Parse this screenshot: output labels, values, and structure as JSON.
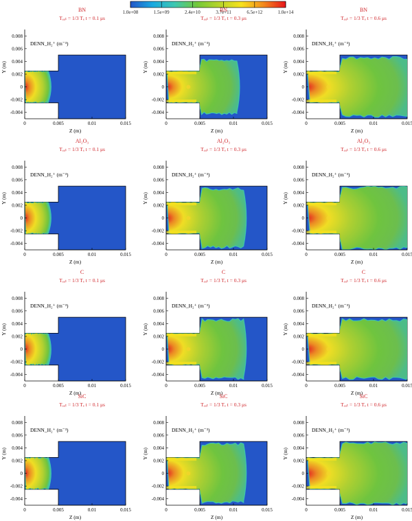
{
  "colorbar": {
    "tick_labels": [
      "1.0e+08",
      "1.5e+09",
      "2.4e+10",
      "3.7e+11",
      "6.5e+12",
      "1.0e+14"
    ],
    "colors": [
      "#2456c8",
      "#1aa9e0",
      "#3ec7b0",
      "#72c83a",
      "#b6d42c",
      "#f7e21e",
      "#f28a1e",
      "#e8141b"
    ]
  },
  "axis_labels": {
    "x": "Z (m)",
    "y": "Y (m)"
  },
  "variable_label": "DENN_H₂⁺ (m⁻³)",
  "chart_data": {
    "type": "heatmap",
    "quantity": "DENN_H₂⁺",
    "unit": "m⁻³",
    "color_scale": "log",
    "value_range": [
      100000000.0,
      100000000000000.0
    ],
    "xlim": [
      0,
      0.015
    ],
    "ylim": [
      -0.005,
      0.009
    ],
    "xticks": [
      "0",
      "0.005",
      "0.01",
      "0.015"
    ],
    "yticks": [
      "0.008",
      "0.006",
      "0.004",
      "0.002",
      "0",
      "-0.002",
      "-0.004"
    ],
    "panel_size_label": "1/3 T",
    "times_us": [
      0.1,
      0.3,
      0.6
    ],
    "materials": [
      {
        "name": "BN",
        "panels": [
          {
            "title": "BN",
            "params": "Tₐᵤₜ = 1/3 Tₑ   t = 0.1 μs",
            "time_us": 0.1,
            "plasma_front_z_m": 0.0035,
            "plasma_halfwidth_m": 0.0025
          },
          {
            "title": "BN",
            "params": "Tₐᵤₜ = 1/3 Tₑ   t = 0.3 μs",
            "time_us": 0.3,
            "plasma_front_z_m": 0.0105,
            "plasma_halfwidth_m": 0.0042
          },
          {
            "title": "BN",
            "params": "Tₐᵤₜ = 1/3 Tₑ   t = 0.6 μs",
            "time_us": 0.6,
            "plasma_front_z_m": 0.015,
            "plasma_halfwidth_m": 0.0046
          }
        ]
      },
      {
        "name": "Al2O3",
        "panels": [
          {
            "title": "Al₂O₃",
            "params": "Tₐᵤₜ = 1/3 Tₑ   t = 0.1 μs",
            "time_us": 0.1,
            "plasma_front_z_m": 0.0035,
            "plasma_halfwidth_m": 0.0025
          },
          {
            "title": "Al₂O₃",
            "params": "Tₐᵤₜ = 1/3 Tₑ   t = 0.3 μs",
            "time_us": 0.3,
            "plasma_front_z_m": 0.0115,
            "plasma_halfwidth_m": 0.0046
          },
          {
            "title": "Al₂O₃",
            "params": "Tₐᵤₜ = 1/3 Tₑ   t = 0.6 μs",
            "time_us": 0.6,
            "plasma_front_z_m": 0.015,
            "plasma_halfwidth_m": 0.0048
          }
        ]
      },
      {
        "name": "C",
        "panels": [
          {
            "title": "C",
            "params": "Tₐᵤₜ = 1/3 Tₑ   t = 0.1 μs",
            "time_us": 0.1,
            "plasma_front_z_m": 0.0035,
            "plasma_halfwidth_m": 0.0027
          },
          {
            "title": "C",
            "params": "Tₐᵤₜ = 1/3 Tₑ   t = 0.3 μs",
            "time_us": 0.3,
            "plasma_front_z_m": 0.0115,
            "plasma_halfwidth_m": 0.0046
          },
          {
            "title": "C",
            "params": "Tₐᵤₜ = 1/3 Tₑ   t = 0.6 μs",
            "time_us": 0.6,
            "plasma_front_z_m": 0.015,
            "plasma_halfwidth_m": 0.0046
          }
        ]
      },
      {
        "name": "SiC",
        "panels": [
          {
            "title": "SiC",
            "params": "Tₐᵤₜ = 1/3 Tₑ   t = 0.1 μs",
            "time_us": 0.1,
            "plasma_front_z_m": 0.0035,
            "plasma_halfwidth_m": 0.0027
          },
          {
            "title": "SiC",
            "params": "Tₐᵤₜ = 1/3 Tₑ   t = 0.3 μs",
            "time_us": 0.3,
            "plasma_front_z_m": 0.0115,
            "plasma_halfwidth_m": 0.0046
          },
          {
            "title": "SiC",
            "params": "Tₐᵤₜ = 1/3 Tₑ   t = 0.6 μs",
            "time_us": 0.6,
            "plasma_front_z_m": 0.015,
            "plasma_halfwidth_m": 0.0048
          }
        ]
      }
    ]
  }
}
